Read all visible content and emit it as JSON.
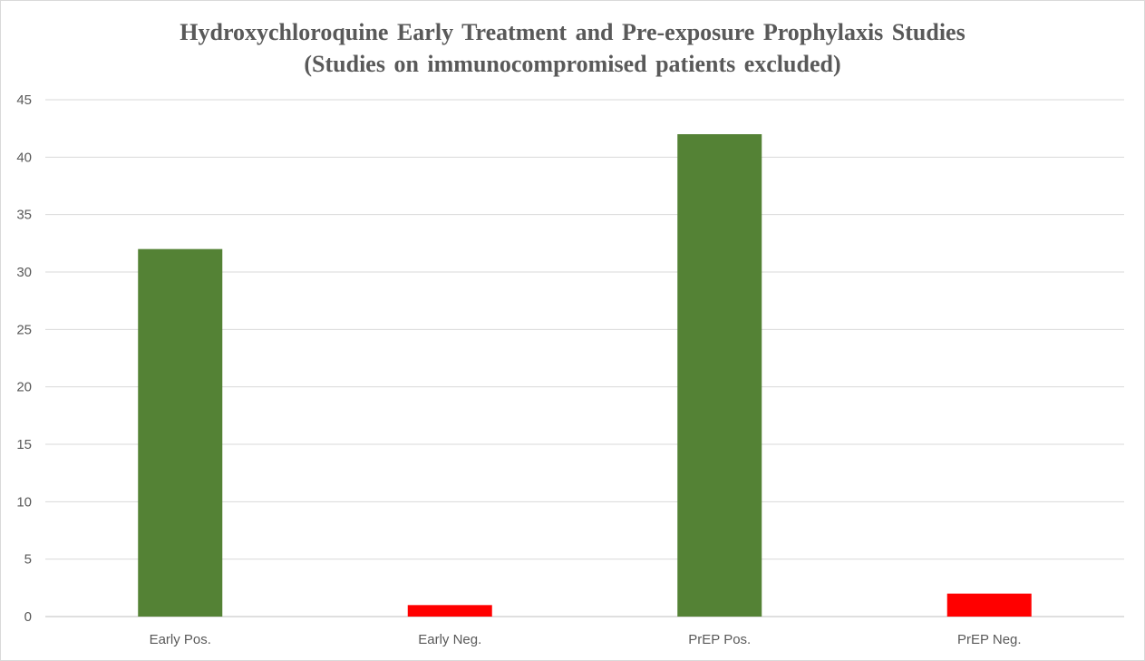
{
  "chart_data": {
    "type": "bar",
    "title": "Hydroxychloroquine Early Treatment and Pre-exposure Prophylaxis Studies",
    "subtitle": "(Studies on immunocompromised patients excluded)",
    "xlabel": "",
    "ylabel": "",
    "categories": [
      "Early Pos.",
      "Early Neg.",
      "PrEP Pos.",
      "PrEP Neg."
    ],
    "values": [
      32,
      1,
      42,
      2
    ],
    "bar_colors": [
      "#548235",
      "#ff0000",
      "#548235",
      "#ff0000"
    ],
    "ylim": [
      0,
      45
    ],
    "yticks": [
      "0",
      "5",
      "10",
      "15",
      "20",
      "25",
      "30",
      "35",
      "40",
      "45"
    ],
    "grid": true,
    "legend": "none"
  }
}
